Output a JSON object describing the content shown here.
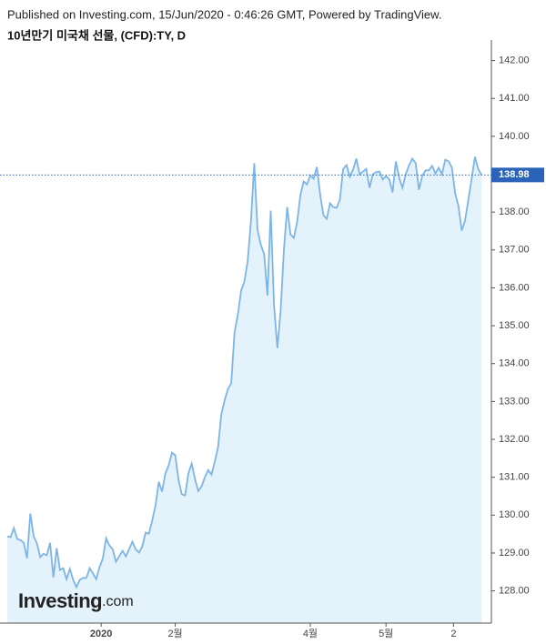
{
  "chart_data": {
    "type": "area",
    "header": "Published on Investing.com, 15/Jun/2020 - 0:46:26 GMT, Powered by TradingView.",
    "title": "10년만기 미국채 선물, (CFD):TY, D",
    "logo": {
      "main": "Investing",
      "suffix": ".com"
    },
    "color": "#7cb5e6",
    "fill": "#e4f2fb",
    "values": [
      129.44,
      129.42,
      129.66,
      129.37,
      129.34,
      129.27,
      128.86,
      130.04,
      129.44,
      129.25,
      128.89,
      128.98,
      128.94,
      129.27,
      128.36,
      129.13,
      128.55,
      128.6,
      128.31,
      128.58,
      128.29,
      128.1,
      128.29,
      128.34,
      128.34,
      128.6,
      128.46,
      128.31,
      128.62,
      128.86,
      129.39,
      129.2,
      129.1,
      128.77,
      128.91,
      129.06,
      128.91,
      129.1,
      129.3,
      129.1,
      129.01,
      129.18,
      129.54,
      129.51,
      129.85,
      130.26,
      130.88,
      130.62,
      131.1,
      131.31,
      131.65,
      131.58,
      130.93,
      130.55,
      130.52,
      131.1,
      131.36,
      130.95,
      130.64,
      130.76,
      131.0,
      131.19,
      131.07,
      131.41,
      131.79,
      132.66,
      133.04,
      133.33,
      133.48,
      134.82,
      135.28,
      135.93,
      136.17,
      136.72,
      137.77,
      139.29,
      137.53,
      137.13,
      136.89,
      135.8,
      138.04,
      135.56,
      134.41,
      135.4,
      137.01,
      138.13,
      137.41,
      137.32,
      137.73,
      138.45,
      138.81,
      138.73,
      138.97,
      138.88,
      139.19,
      138.47,
      137.92,
      137.82,
      138.23,
      138.13,
      138.11,
      138.33,
      139.14,
      139.24,
      138.93,
      139.12,
      139.41,
      139.0,
      139.07,
      139.14,
      138.64,
      139.0,
      139.05,
      139.07,
      138.86,
      138.95,
      138.86,
      138.52,
      139.34,
      138.9,
      138.64,
      139.0,
      139.24,
      139.41,
      139.29,
      138.59,
      138.95,
      139.1,
      139.1,
      139.22,
      139.02,
      139.17,
      139.0,
      139.38,
      139.34,
      139.17,
      138.49,
      138.16,
      137.51,
      137.77,
      138.33,
      138.88,
      139.46,
      139.14,
      138.98
    ],
    "last_label": {
      "value": 138.98,
      "label": "138.98",
      "color": "#2a63b8"
    },
    "xlim": [
      0,
      147
    ],
    "xticks": [
      {
        "value": 28.5,
        "label": "2020"
      },
      {
        "value": 51,
        "label": "2월"
      },
      {
        "value": 92,
        "label": "4월"
      },
      {
        "value": 115,
        "label": "5월"
      },
      {
        "value": 135.5,
        "label": "2"
      }
    ],
    "ylim": [
      127.15,
      142.35
    ],
    "yticks": [
      {
        "value": 128,
        "label": "128.00"
      },
      {
        "value": 129,
        "label": "129.00"
      },
      {
        "value": 130,
        "label": "130.00"
      },
      {
        "value": 131,
        "label": "131.00"
      },
      {
        "value": 132,
        "label": "132.00"
      },
      {
        "value": 133,
        "label": "133.00"
      },
      {
        "value": 134,
        "label": "134.00"
      },
      {
        "value": 135,
        "label": "135.00"
      },
      {
        "value": 136,
        "label": "136.00"
      },
      {
        "value": 137,
        "label": "137.00"
      },
      {
        "value": 138,
        "label": "138.00"
      },
      {
        "value": 139,
        "label": "139.00"
      },
      {
        "value": 140,
        "label": "140.00"
      },
      {
        "value": 141,
        "label": "141.00"
      },
      {
        "value": 142,
        "label": "142.00"
      }
    ]
  }
}
